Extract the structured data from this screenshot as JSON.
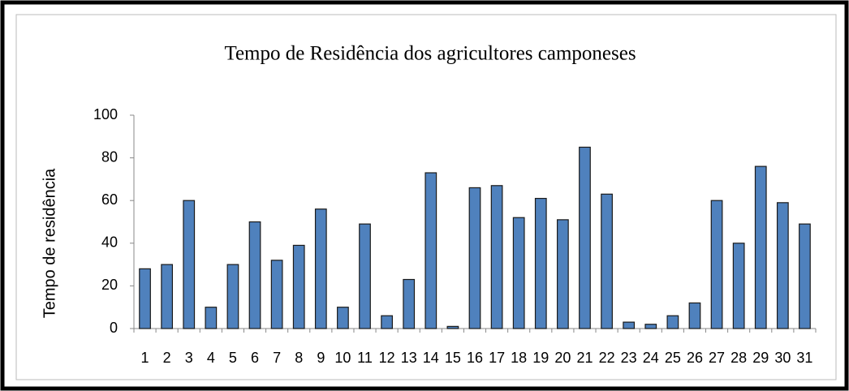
{
  "chart_data": {
    "type": "bar",
    "title": "Tempo de Residência  dos agricultores  camponeses",
    "y_label": "Tempo de  residência",
    "categories": [
      "1",
      "2",
      "3",
      "4",
      "5",
      "6",
      "7",
      "8",
      "9",
      "10",
      "11",
      "12",
      "13",
      "14",
      "15",
      "16",
      "17",
      "18",
      "19",
      "20",
      "21",
      "22",
      "23",
      "24",
      "25",
      "26",
      "27",
      "28",
      "29",
      "30",
      "31"
    ],
    "values": [
      28,
      30,
      60,
      10,
      30,
      50,
      32,
      39,
      56,
      10,
      49,
      6,
      23,
      73,
      1,
      66,
      67,
      52,
      61,
      51,
      85,
      63,
      3,
      2,
      6,
      12,
      60,
      40,
      76,
      59,
      49
    ],
    "color": "#4f81bd",
    "ylim": [
      0,
      100
    ],
    "yticks": [
      0,
      20,
      40,
      60,
      80,
      100
    ],
    "grid": false
  }
}
